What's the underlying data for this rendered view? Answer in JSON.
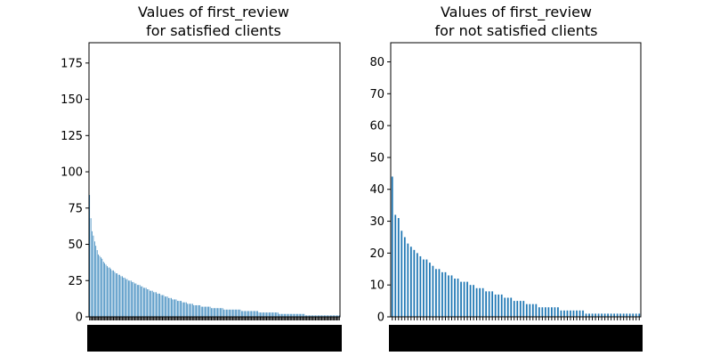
{
  "chart_data": [
    {
      "type": "bar",
      "title_line1": "Values of first_review",
      "title_line2": "for satisfied clients",
      "xlabel": "",
      "ylabel": "",
      "ylim": [
        0,
        189
      ],
      "yticks": [
        0,
        25,
        50,
        75,
        100,
        125,
        150,
        175
      ],
      "grid": false,
      "legend": "none",
      "color": "#1f77b4",
      "values": [
        84,
        68,
        59,
        56,
        52,
        49,
        46,
        43,
        42,
        41,
        40,
        38,
        37,
        36,
        35,
        34,
        34,
        33,
        32,
        32,
        31,
        30,
        30,
        29,
        29,
        28,
        28,
        27,
        27,
        26,
        26,
        25,
        25,
        25,
        24,
        24,
        23,
        23,
        22,
        22,
        22,
        21,
        21,
        20,
        20,
        20,
        19,
        19,
        18,
        18,
        18,
        17,
        17,
        17,
        16,
        16,
        16,
        15,
        15,
        15,
        14,
        14,
        14,
        13,
        13,
        13,
        12,
        12,
        12,
        12,
        11,
        11,
        11,
        11,
        10,
        10,
        10,
        10,
        9,
        9,
        9,
        9,
        9,
        8,
        8,
        8,
        8,
        8,
        8,
        7,
        7,
        7,
        7,
        7,
        7,
        7,
        7,
        6,
        6,
        6,
        6,
        6,
        6,
        6,
        6,
        6,
        6,
        5,
        5,
        5,
        5,
        5,
        5,
        5,
        5,
        5,
        5,
        5,
        5,
        5,
        5,
        4,
        4,
        4,
        4,
        4,
        4,
        4,
        4,
        4,
        4,
        4,
        4,
        4,
        4,
        3,
        3,
        3,
        3,
        3,
        3,
        3,
        3,
        3,
        3,
        3,
        3,
        3,
        3,
        3,
        3,
        2,
        2,
        2,
        2,
        2,
        2,
        2,
        2,
        2,
        2,
        2,
        2,
        2,
        2,
        2,
        2,
        2,
        2,
        2,
        2,
        2,
        1,
        1,
        1,
        1,
        1,
        1,
        1,
        1,
        1,
        1,
        1,
        1,
        1,
        1,
        1,
        1,
        1,
        1,
        1,
        1,
        1,
        1,
        1,
        1,
        1,
        1,
        1,
        1
      ]
    },
    {
      "type": "bar",
      "title_line1": "Values of first_review",
      "title_line2": "for not satisfied clients",
      "xlabel": "",
      "ylabel": "",
      "ylim": [
        0,
        86
      ],
      "yticks": [
        0,
        10,
        20,
        30,
        40,
        50,
        60,
        70,
        80
      ],
      "grid": false,
      "legend": "none",
      "color": "#1f77b4",
      "values": [
        44,
        32,
        31,
        27,
        25,
        23,
        22,
        21,
        20,
        19,
        18,
        18,
        17,
        16,
        15,
        15,
        14,
        14,
        13,
        13,
        12,
        12,
        11,
        11,
        11,
        10,
        10,
        9,
        9,
        9,
        8,
        8,
        8,
        7,
        7,
        7,
        6,
        6,
        6,
        5,
        5,
        5,
        5,
        4,
        4,
        4,
        4,
        3,
        3,
        3,
        3,
        3,
        3,
        3,
        2,
        2,
        2,
        2,
        2,
        2,
        2,
        2,
        1,
        1,
        1,
        1,
        1,
        1,
        1,
        1,
        1,
        1,
        1,
        1,
        1,
        1,
        1,
        1,
        1,
        1
      ]
    }
  ]
}
